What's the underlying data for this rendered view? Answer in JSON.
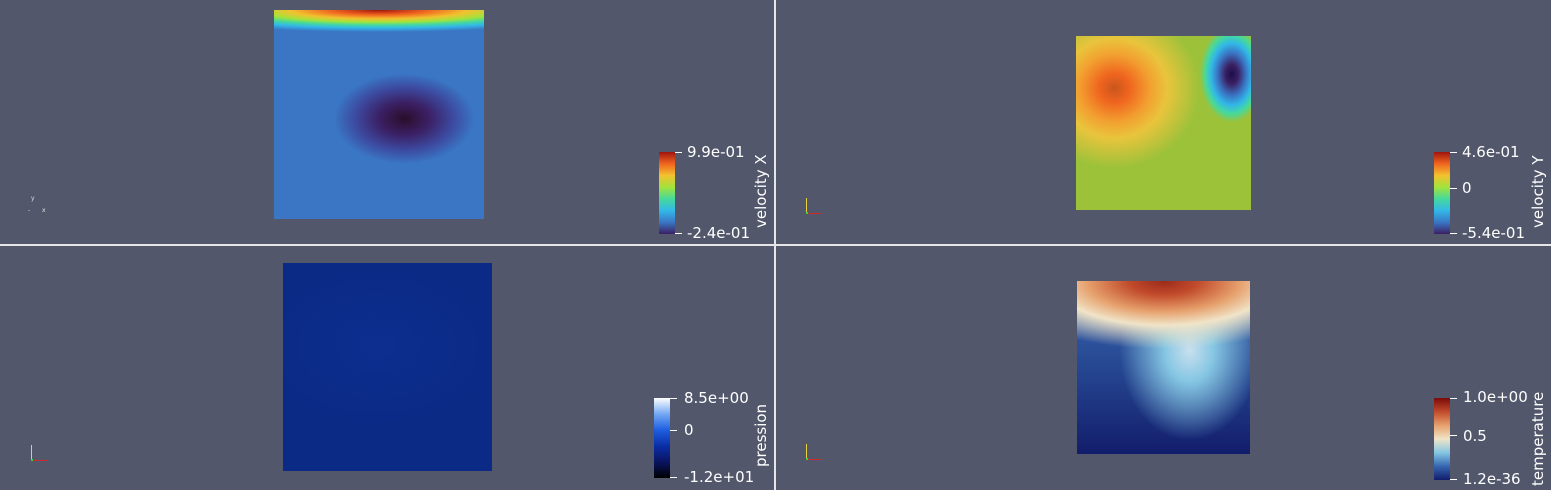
{
  "views": [
    {
      "id": "velocity-x",
      "colorbar": {
        "title": "velocity X",
        "max_label": "9.9e-01",
        "min_label": "-2.4e-01",
        "mid_label": ""
      },
      "colormap": [
        "#3b1f63",
        "#3a76c4",
        "#32b8e8",
        "#46d99c",
        "#a3e33b",
        "#f2c12f",
        "#f0651f",
        "#a0140e"
      ]
    },
    {
      "id": "velocity-y",
      "colorbar": {
        "title": "velocity Y",
        "max_label": "4.6e-01",
        "mid_label": "0",
        "min_label": "-5.4e-01"
      },
      "colormap": [
        "#3b1f63",
        "#3a76c4",
        "#32b8e8",
        "#46d99c",
        "#a3e33b",
        "#f2c12f",
        "#f0651f",
        "#a0140e"
      ]
    },
    {
      "id": "pression",
      "colorbar": {
        "title": "pression",
        "max_label": "8.5e+00",
        "mid_label": "0",
        "min_label": "-1.2e+01"
      },
      "colormap": [
        "#000000",
        "#0a1460",
        "#0a2ea6",
        "#1e5fe0",
        "#74a8f3",
        "#ffffff"
      ]
    },
    {
      "id": "temperature",
      "colorbar": {
        "title": "temperature",
        "max_label": "1.0e+00",
        "mid_label": "0.5",
        "min_label": "1.2e-36"
      },
      "colormap": [
        "#121d6b",
        "#3566b0",
        "#85c6e3",
        "#f0e4c8",
        "#e6a06c",
        "#c14a2b",
        "#7a0a0a"
      ]
    }
  ]
}
